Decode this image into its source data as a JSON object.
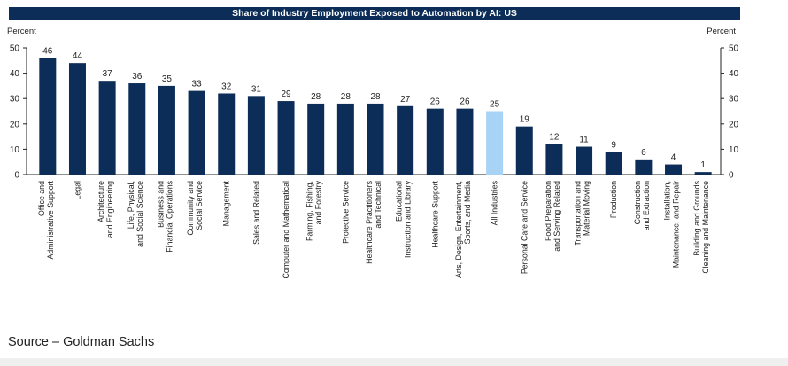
{
  "source_text": "Source – Goldman Sachs",
  "colors": {
    "bar": "#0b2d57",
    "highlight": "#a9d3f5",
    "title_bg": "#0b2d57"
  },
  "chart_data": {
    "type": "bar",
    "title": "Share of Industry Employment Exposed to Automation by AI: US",
    "ylabel_left": "Percent",
    "ylabel_right": "Percent",
    "ylim": [
      0,
      50
    ],
    "yticks": [
      0,
      10,
      20,
      30,
      40,
      50
    ],
    "grid": false,
    "highlight_category": "All Industries",
    "categories": [
      "Office and Administrative Support",
      "Legal",
      "Architecture and Engineering",
      "Life, Physical, and Social Science",
      "Business and Financial Operations",
      "Community and Social Service",
      "Management",
      "Sales and Related",
      "Computer and Mathematical",
      "Farming, Fishing, and Forestry",
      "Protective Service",
      "Healthcare Practitioners and Technical",
      "Educational Instruction and Library",
      "Healthcare Support",
      "Arts, Design, Entertainment, Sports, and Media",
      "All Industries",
      "Personal Care and Service",
      "Food Preparation and Serving Related",
      "Transportation and Material Moving",
      "Production",
      "Construction and Extraction",
      "Installation, Maintenance, and Repair",
      "Building and Grounds Cleaning and Maintenance"
    ],
    "values": [
      46,
      44,
      37,
      36,
      35,
      33,
      32,
      31,
      29,
      28,
      28,
      28,
      27,
      26,
      26,
      25,
      19,
      12,
      11,
      9,
      6,
      4,
      1
    ]
  }
}
